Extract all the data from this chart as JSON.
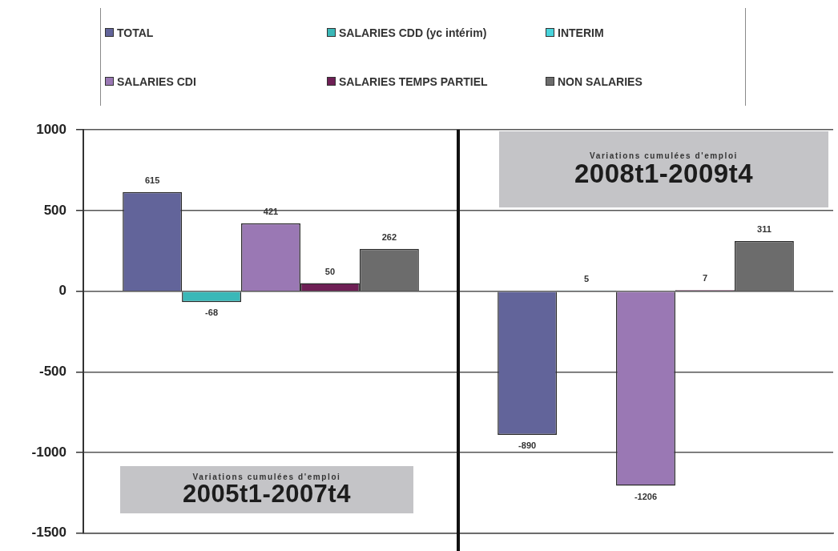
{
  "chart_data": {
    "type": "bar",
    "categories": [
      "2005t1-2007t4",
      "2008t1-2009t4"
    ],
    "series": [
      {
        "name": "TOTAL",
        "color": "#62649a",
        "values": [
          615,
          -890
        ]
      },
      {
        "name": "SALARIES CDD (yc intérim)",
        "color": "#3ab8b8",
        "values": [
          -68,
          5
        ]
      },
      {
        "name": "INTERIM",
        "color": "#48d4dc",
        "values": [
          null,
          null
        ]
      },
      {
        "name": "SALARIES CDI",
        "color": "#9a78b4",
        "values": [
          421,
          -1206
        ]
      },
      {
        "name": "SALARIES TEMPS PARTIEL",
        "color": "#6e1f55",
        "values": [
          50,
          7
        ]
      },
      {
        "name": "NON SALARIES",
        "color": "#6c6c6c",
        "values": [
          262,
          311
        ]
      }
    ],
    "ylim": [
      -1500,
      1000
    ],
    "yticks": [
      -1500,
      -1000,
      -500,
      0,
      500,
      1000
    ],
    "grid": "y",
    "legend": "top",
    "tick_labels": "y",
    "data_labels": true,
    "annotations": [
      "Variations cumulées d'emploi",
      "Variations cumulées d'emploi"
    ]
  }
}
